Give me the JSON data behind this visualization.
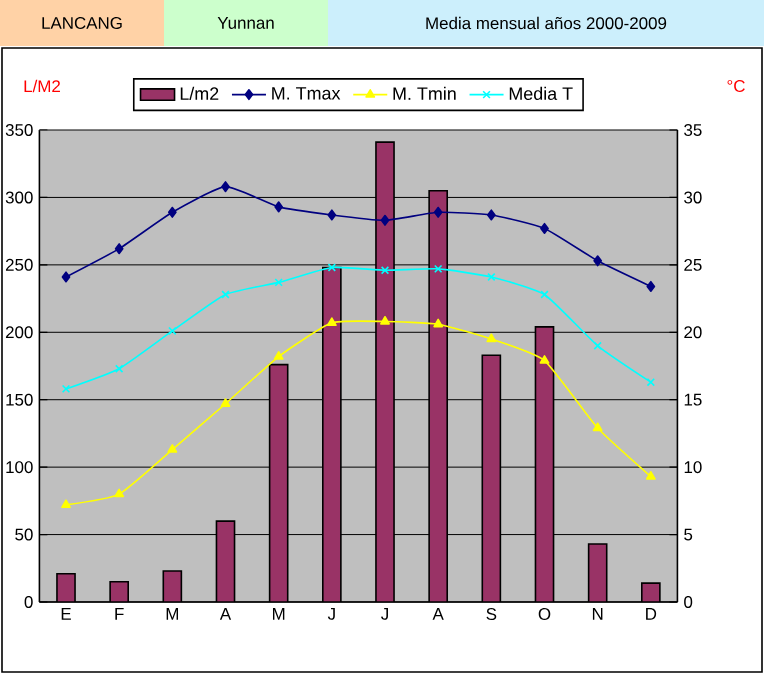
{
  "chart_data": {
    "type": "bar",
    "title": "LANCANG",
    "subtitle": "Yunnan",
    "annotations": [
      "Media mensual años 2000-2009"
    ],
    "ylabel": "L/M2",
    "y2label": "°C",
    "categories": [
      "E",
      "F",
      "M",
      "A",
      "M",
      "J",
      "J",
      "A",
      "S",
      "O",
      "N",
      "D"
    ],
    "series": [
      {
        "name": "L/m2",
        "color": "#993366",
        "values": [
          21,
          15,
          23,
          60,
          176,
          248,
          341,
          305,
          183,
          204,
          43,
          14
        ]
      },
      {
        "name": "M. Tmax",
        "type": "line",
        "axis": "y2",
        "color": "#000080",
        "marker": "diamond",
        "values": [
          24.1,
          26.2,
          28.9,
          30.8,
          29.3,
          28.7,
          28.3,
          28.9,
          28.7,
          27.7,
          25.3,
          23.4
        ]
      },
      {
        "name": "M. Tmin",
        "type": "line",
        "axis": "y2",
        "color": "#ffff00",
        "marker": "triangle",
        "values": [
          7.2,
          8.0,
          11.3,
          14.7,
          18.2,
          20.7,
          20.8,
          20.6,
          19.5,
          17.9,
          12.9,
          9.3
        ]
      },
      {
        "name": "Media T",
        "type": "line",
        "axis": "y2",
        "color": "#00ffff",
        "marker": "cross",
        "values": [
          15.8,
          17.3,
          20.1,
          22.8,
          23.7,
          24.8,
          24.6,
          24.7,
          24.1,
          22.8,
          19.0,
          16.3
        ]
      }
    ],
    "ylim": [
      0,
      350
    ],
    "yticks": [
      0,
      50,
      100,
      150,
      200,
      250,
      300,
      350
    ],
    "y2lim": [
      0,
      35
    ],
    "y2ticks": [
      0,
      5,
      10,
      15,
      20,
      25,
      30,
      35
    ],
    "grid": "y",
    "legend": "top"
  }
}
